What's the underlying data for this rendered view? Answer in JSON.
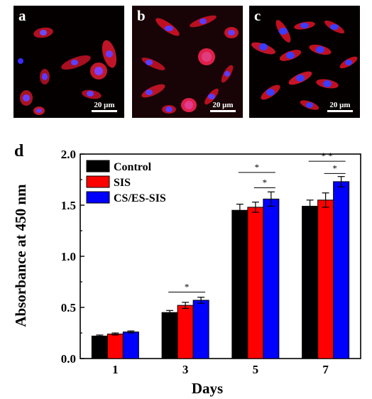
{
  "panels": [
    {
      "letter": "a",
      "scale_label": "20 μm"
    },
    {
      "letter": "b",
      "scale_label": "20 μm"
    },
    {
      "letter": "c",
      "scale_label": "20 μm"
    }
  ],
  "chart_data": {
    "type": "bar",
    "panel_letter": "d",
    "categories": [
      "1",
      "3",
      "5",
      "7"
    ],
    "series": [
      {
        "name": "Control",
        "color": "#000000",
        "values": [
          0.22,
          0.45,
          1.45,
          1.49
        ],
        "errors": [
          0.01,
          0.02,
          0.06,
          0.06
        ]
      },
      {
        "name": "SIS",
        "color": "#ff0000",
        "values": [
          0.24,
          0.52,
          1.48,
          1.55
        ],
        "errors": [
          0.01,
          0.03,
          0.05,
          0.07
        ]
      },
      {
        "name": "CS/ES-SIS",
        "color": "#0000ff",
        "values": [
          0.26,
          0.57,
          1.56,
          1.73
        ],
        "errors": [
          0.01,
          0.03,
          0.07,
          0.05
        ]
      }
    ],
    "xlabel": "Days",
    "ylabel": "Absorbance at 450 nm",
    "ylim": [
      0.0,
      2.0
    ],
    "yticks": [
      "0.0",
      "0.5",
      "1.0",
      "1.5",
      "2.0"
    ],
    "legend_position": "top-left",
    "significance": [
      {
        "category": "3",
        "from": "Control",
        "to": "CS/ES-SIS",
        "label": "*",
        "level": 0.65
      },
      {
        "category": "5",
        "from": "Control",
        "to": "CS/ES-SIS",
        "label": "*",
        "level": 1.82
      },
      {
        "category": "5",
        "from": "SIS",
        "to": "CS/ES-SIS",
        "label": "*",
        "level": 1.67
      },
      {
        "category": "7",
        "from": "Control",
        "to": "CS/ES-SIS",
        "label": "* *",
        "level": 1.93
      },
      {
        "category": "7",
        "from": "SIS",
        "to": "CS/ES-SIS",
        "label": "*",
        "level": 1.81
      }
    ]
  }
}
